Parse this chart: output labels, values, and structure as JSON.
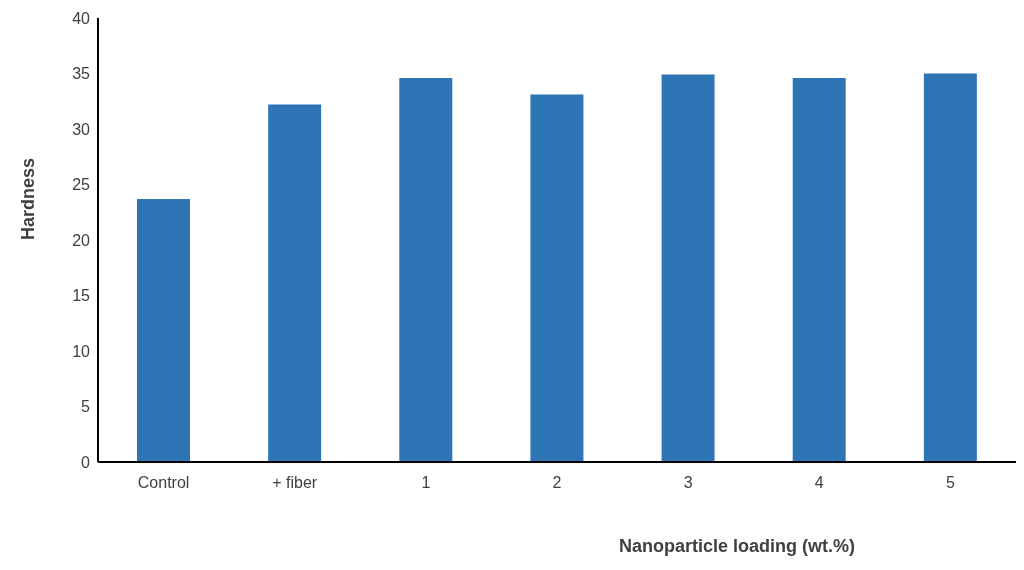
{
  "chart_data": {
    "type": "bar",
    "xlabel": "Nanoparticle loading (wt.%)",
    "ylabel": "Hardness",
    "categories": [
      "Control",
      "+ fiber",
      "1",
      "2",
      "3",
      "4",
      "5"
    ],
    "values": [
      23.7,
      32.2,
      34.6,
      33.1,
      34.9,
      34.6,
      35.0
    ],
    "color": "#2e75b6",
    "ylim": [
      0,
      40
    ],
    "yticks": [
      0,
      5,
      10,
      15,
      20,
      25,
      30,
      35,
      40
    ],
    "grid": false
  }
}
